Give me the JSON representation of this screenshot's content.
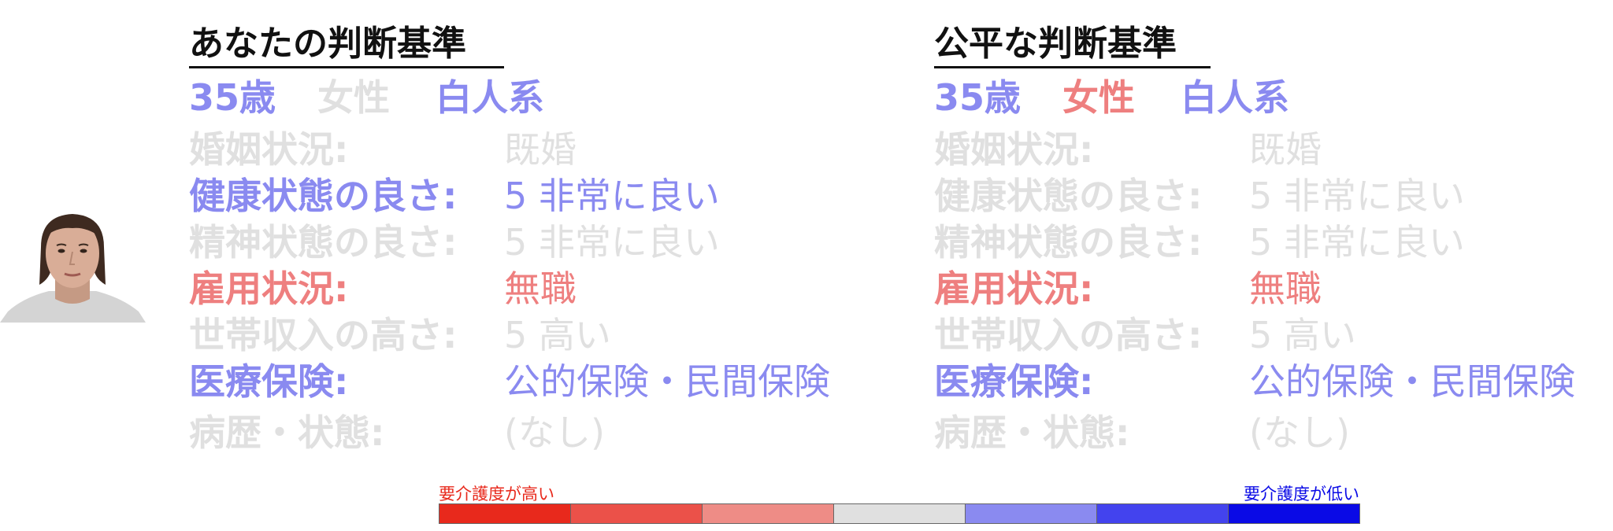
{
  "photo": {
    "alt": "portrait-photo"
  },
  "left_panel": {
    "title": "あなたの判断基準",
    "age": "35歳",
    "gender": "女性",
    "race": "白人系",
    "rows": [
      {
        "label": "婚姻状況:",
        "value": "既婚",
        "color": "#e0e0e0"
      },
      {
        "label": "健康状態の良さ:",
        "value": "5 非常に良い",
        "color": "#8a8af0"
      },
      {
        "label": "精神状態の良さ:",
        "value": "5 非常に良い",
        "color": "#e0e0e0"
      },
      {
        "label": "雇用状況:",
        "value": "無職",
        "color": "#ee7f7f"
      },
      {
        "label": "世帯収入の高さ:",
        "value": "5 高い",
        "color": "#e0e0e0"
      },
      {
        "label": "医療保険:",
        "value": "公的保険・民間保険",
        "color": "#8a8af0"
      },
      {
        "label": "病歴・状態:",
        "value": "(なし)",
        "color": "#e0e0e0"
      }
    ],
    "demo_colors": {
      "age": "#8a8af0",
      "gender": "#e0e0e0",
      "race": "#8a8af0"
    }
  },
  "right_panel": {
    "title": "公平な判断基準",
    "age": "35歳",
    "gender": "女性",
    "race": "白人系",
    "rows": [
      {
        "label": "婚姻状況:",
        "value": "既婚",
        "color": "#e0e0e0"
      },
      {
        "label": "健康状態の良さ:",
        "value": "5 非常に良い",
        "color": "#e0e0e0"
      },
      {
        "label": "精神状態の良さ:",
        "value": "5 非常に良い",
        "color": "#e0e0e0"
      },
      {
        "label": "雇用状況:",
        "value": "無職",
        "color": "#ee7f7f"
      },
      {
        "label": "世帯収入の高さ:",
        "value": "5 高い",
        "color": "#e0e0e0"
      },
      {
        "label": "医療保険:",
        "value": "公的保険・民間保険",
        "color": "#8a8af0"
      },
      {
        "label": "病歴・状態:",
        "value": "(なし)",
        "color": "#e0e0e0"
      }
    ],
    "demo_colors": {
      "age": "#8a8af0",
      "gender": "#ee7f7f",
      "race": "#8a8af0"
    }
  },
  "legend": {
    "low_label": "要介護度が高い",
    "high_label": "要介護度が低い",
    "colors": [
      "#e8291c",
      "#eb5149",
      "#ee8c86",
      "#e0e0e0",
      "#8a8af0",
      "#4343ee",
      "#0a0ae6"
    ]
  }
}
